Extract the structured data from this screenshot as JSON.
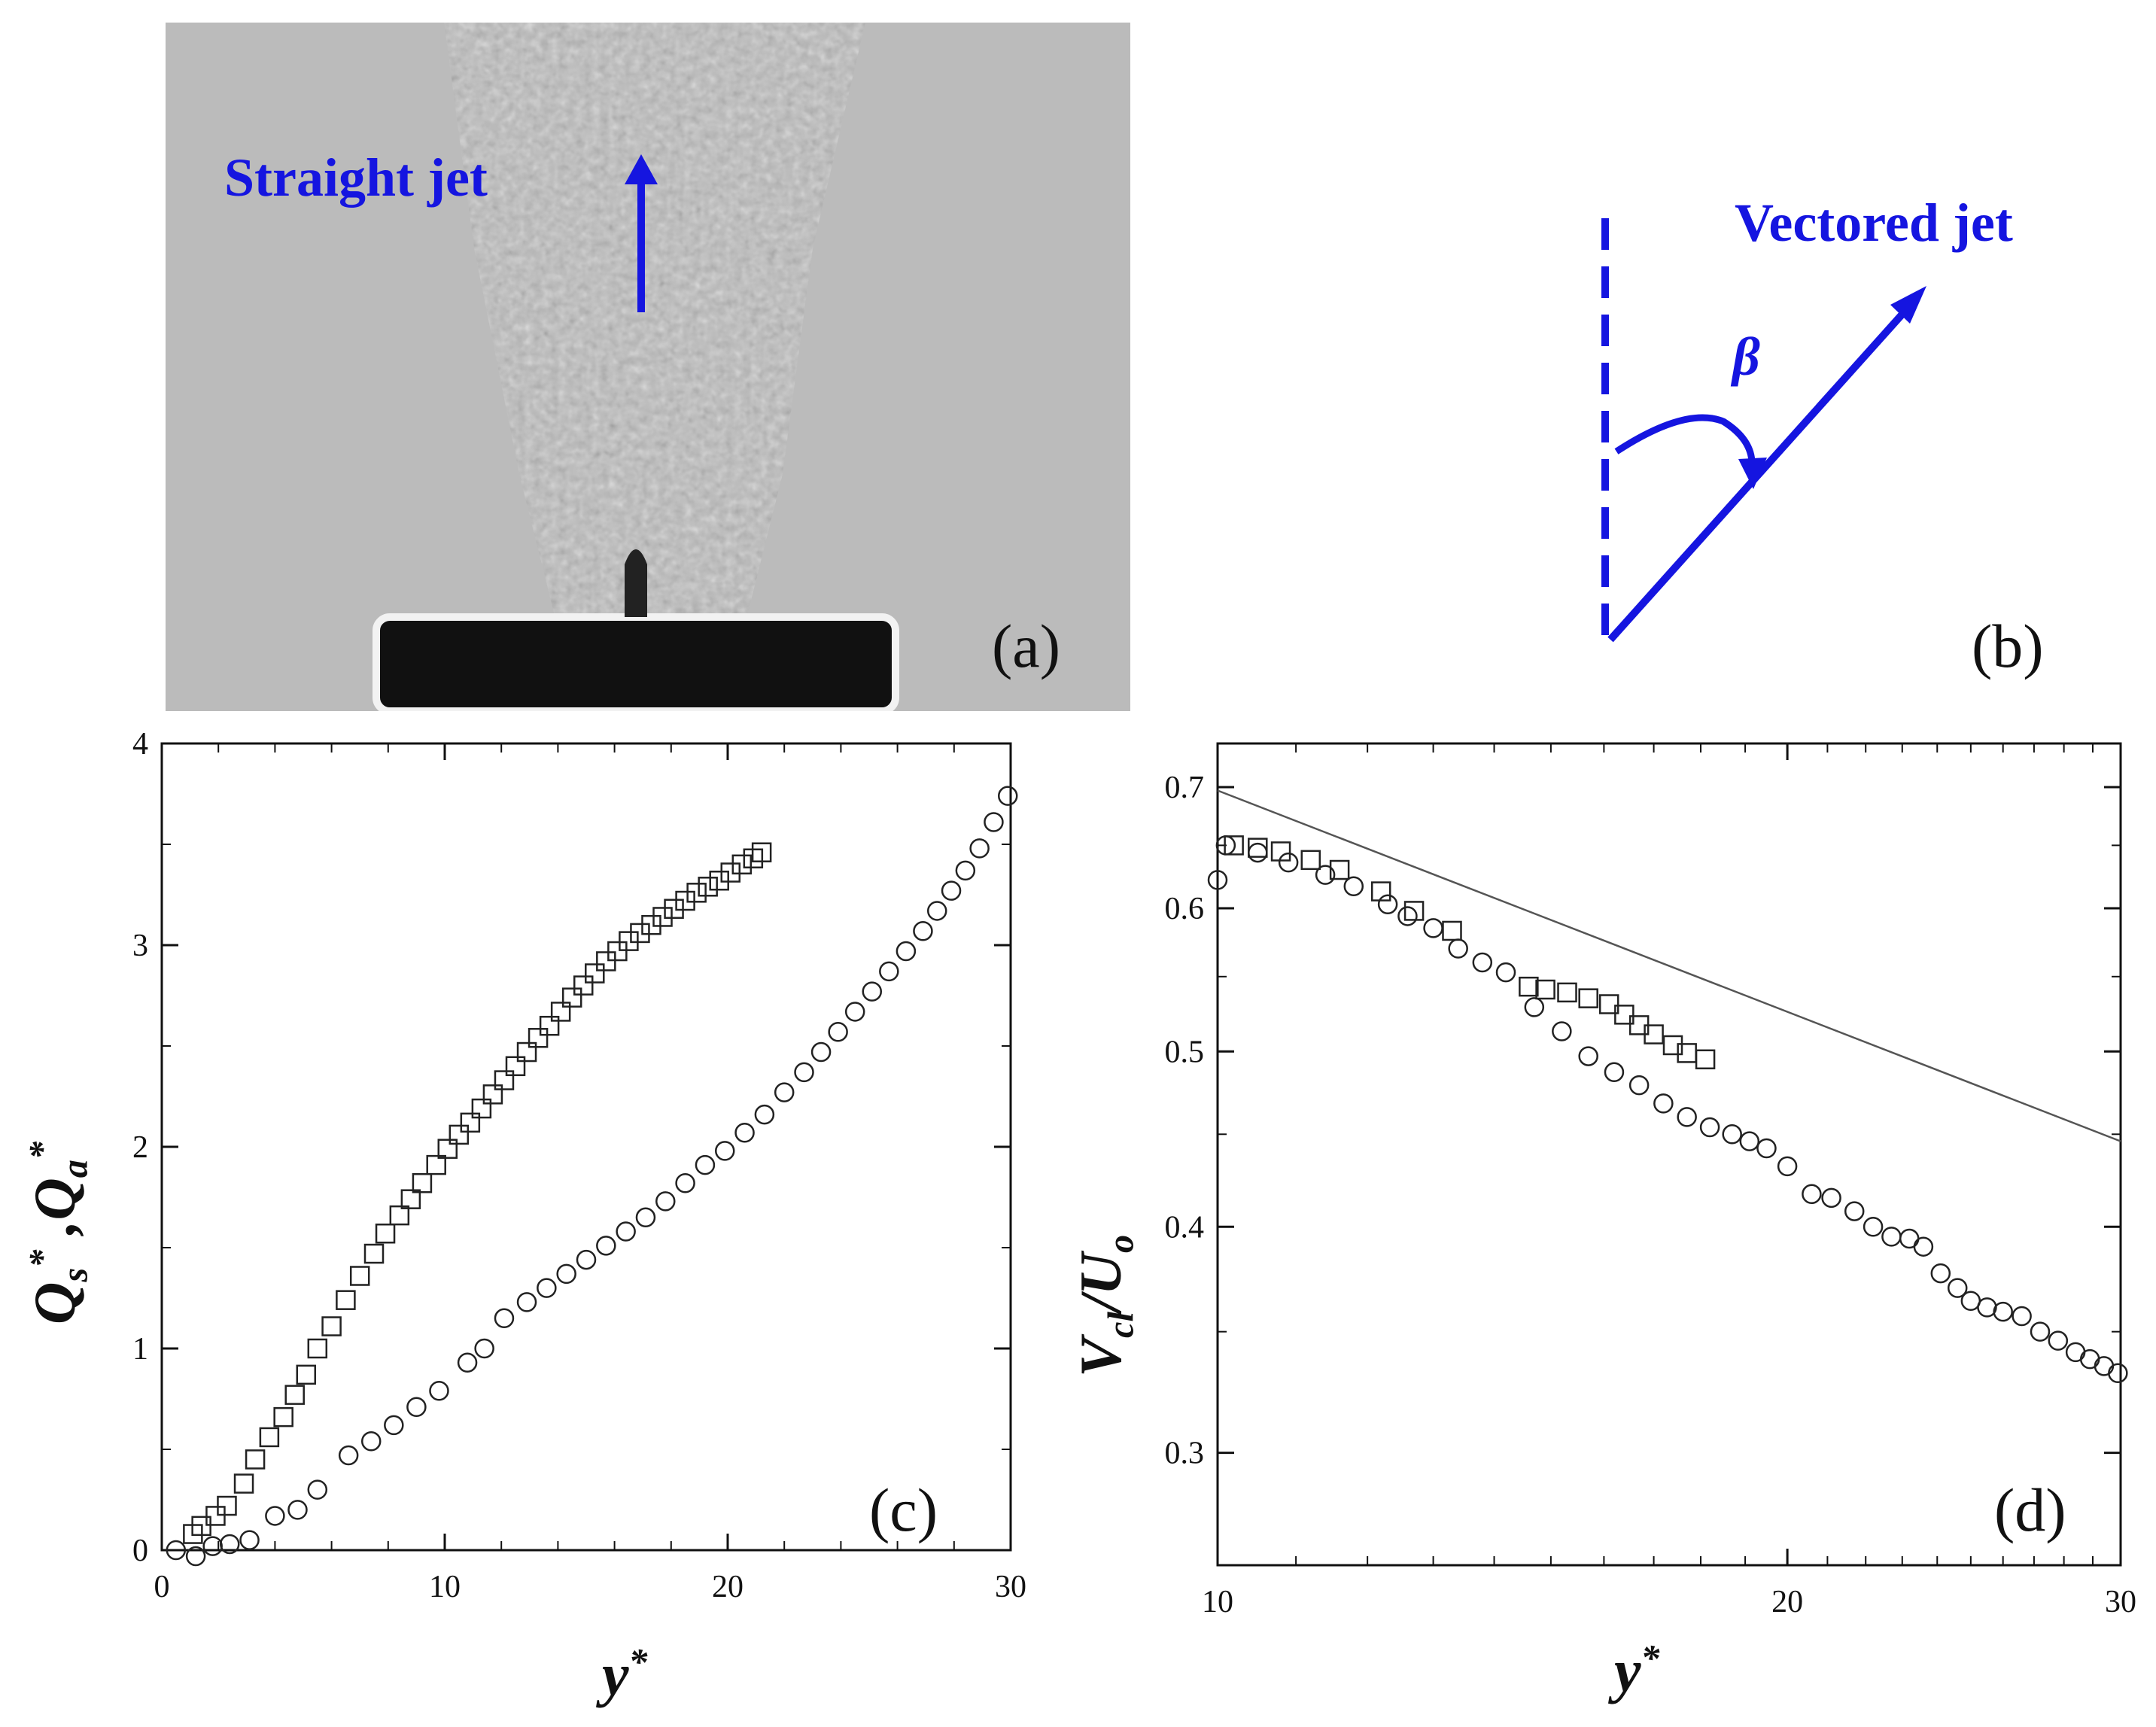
{
  "panels": {
    "a": {
      "label": "(a)",
      "annotation": "Straight jet"
    },
    "b": {
      "label": "(b)",
      "annotation": "Vectored jet",
      "angle_symbol": "β"
    }
  },
  "colors": {
    "annotation": "#1515e0",
    "markers": "#222222",
    "reference_line": "#555555"
  },
  "chart_data": [
    {
      "panel": "(c)",
      "type": "scatter",
      "xlabel_main": "y",
      "xlabel_sup": "*",
      "ylabel": "Q_s*, Q_a*",
      "ylabel_parts": {
        "q1": "Q",
        "sub1": "s",
        "sup1": "*",
        "sep": " ,",
        "q2": "Q",
        "sub2": "a",
        "sup2": "*"
      },
      "xlim": [
        0,
        30
      ],
      "ylim": [
        0,
        4
      ],
      "xticks": [
        0,
        10,
        20,
        30
      ],
      "yticks": [
        0,
        1,
        2,
        3,
        4
      ],
      "legend": "none",
      "grid": false,
      "series": [
        {
          "marker": "square",
          "x": [
            1.1,
            1.4,
            1.9,
            2.3,
            2.9,
            3.3,
            3.8,
            4.3,
            4.7,
            5.1,
            5.5,
            6.0,
            6.5,
            7.0,
            7.5,
            7.9,
            8.4,
            8.8,
            9.2,
            9.7,
            10.1,
            10.5,
            10.9,
            11.3,
            11.7,
            12.1,
            12.5,
            12.9,
            13.3,
            13.7,
            14.1,
            14.5,
            14.9,
            15.3,
            15.7,
            16.1,
            16.5,
            16.9,
            17.3,
            17.7,
            18.1,
            18.5,
            18.9,
            19.3,
            19.7,
            20.1,
            20.5,
            20.9,
            21.2
          ],
          "y": [
            0.08,
            0.12,
            0.17,
            0.22,
            0.33,
            0.45,
            0.56,
            0.66,
            0.77,
            0.87,
            1.0,
            1.11,
            1.24,
            1.36,
            1.47,
            1.57,
            1.66,
            1.74,
            1.82,
            1.91,
            1.99,
            2.06,
            2.12,
            2.19,
            2.26,
            2.33,
            2.4,
            2.47,
            2.54,
            2.6,
            2.67,
            2.74,
            2.8,
            2.86,
            2.92,
            2.97,
            3.02,
            3.06,
            3.1,
            3.14,
            3.18,
            3.22,
            3.26,
            3.29,
            3.32,
            3.36,
            3.4,
            3.43,
            3.46
          ]
        },
        {
          "marker": "circle",
          "x": [
            0.5,
            1.2,
            1.8,
            2.4,
            3.1,
            4.0,
            4.8,
            5.5,
            6.6,
            7.4,
            8.2,
            9.0,
            9.8,
            10.8,
            11.4,
            12.1,
            12.9,
            13.6,
            14.3,
            15.0,
            15.7,
            16.4,
            17.1,
            17.8,
            18.5,
            19.2,
            19.9,
            20.6,
            21.3,
            22.0,
            22.7,
            23.3,
            23.9,
            24.5,
            25.1,
            25.7,
            26.3,
            26.9,
            27.4,
            27.9,
            28.4,
            28.9,
            29.4,
            29.9
          ],
          "y": [
            0.0,
            -0.03,
            0.02,
            0.03,
            0.05,
            0.17,
            0.2,
            0.3,
            0.47,
            0.54,
            0.62,
            0.71,
            0.79,
            0.93,
            1.0,
            1.15,
            1.23,
            1.3,
            1.37,
            1.44,
            1.51,
            1.58,
            1.65,
            1.73,
            1.82,
            1.91,
            1.98,
            2.07,
            2.16,
            2.27,
            2.37,
            2.47,
            2.57,
            2.67,
            2.77,
            2.87,
            2.97,
            3.07,
            3.17,
            3.27,
            3.37,
            3.48,
            3.61,
            3.74
          ]
        }
      ]
    },
    {
      "panel": "(d)",
      "type": "scatter",
      "xlabel_main": "y",
      "xlabel_sup": "*",
      "ylabel": "V_cl/U_o",
      "ylabel_parts": {
        "v": "V",
        "sub1": "cl",
        "slash": "/",
        "u": "U",
        "sub2": "o"
      },
      "xscale": "log",
      "yscale": "log",
      "xlim": [
        10,
        30
      ],
      "ylim": [
        0.26,
        0.74
      ],
      "xticks": [
        10,
        20,
        30
      ],
      "yticks": [
        0.3,
        0.4,
        0.5,
        0.6,
        0.7
      ],
      "legend": "none",
      "grid": false,
      "reference_line": {
        "x": [
          10,
          30
        ],
        "y": [
          0.697,
          0.446
        ]
      },
      "series": [
        {
          "marker": "square",
          "x": [
            10.2,
            10.5,
            10.8,
            11.2,
            11.6,
            12.2,
            12.7,
            13.3,
            14.6,
            14.9,
            15.3,
            15.7,
            16.1,
            16.4,
            16.7,
            17.0,
            17.4,
            17.7,
            18.1
          ],
          "y": [
            0.65,
            0.648,
            0.645,
            0.638,
            0.63,
            0.613,
            0.598,
            0.583,
            0.543,
            0.541,
            0.539,
            0.535,
            0.531,
            0.524,
            0.517,
            0.511,
            0.504,
            0.499,
            0.495
          ]
        },
        {
          "marker": "circle",
          "x": [
            10.0,
            10.1,
            10.5,
            10.9,
            11.4,
            11.8,
            12.3,
            12.6,
            13.0,
            13.4,
            13.8,
            14.2,
            14.7,
            15.2,
            15.7,
            16.2,
            16.7,
            17.2,
            17.7,
            18.2,
            18.7,
            19.1,
            19.5,
            20.0,
            20.6,
            21.1,
            21.7,
            22.2,
            22.7,
            23.2,
            23.6,
            24.1,
            24.6,
            25.0,
            25.5,
            26.0,
            26.6,
            27.2,
            27.8,
            28.4,
            28.9,
            29.4,
            29.9
          ],
          "y": [
            0.622,
            0.65,
            0.644,
            0.636,
            0.626,
            0.617,
            0.603,
            0.594,
            0.585,
            0.57,
            0.56,
            0.553,
            0.529,
            0.513,
            0.497,
            0.487,
            0.479,
            0.468,
            0.46,
            0.454,
            0.45,
            0.446,
            0.442,
            0.432,
            0.417,
            0.415,
            0.408,
            0.4,
            0.395,
            0.394,
            0.39,
            0.377,
            0.37,
            0.364,
            0.361,
            0.359,
            0.357,
            0.35,
            0.346,
            0.341,
            0.338,
            0.335,
            0.332
          ]
        }
      ]
    }
  ]
}
